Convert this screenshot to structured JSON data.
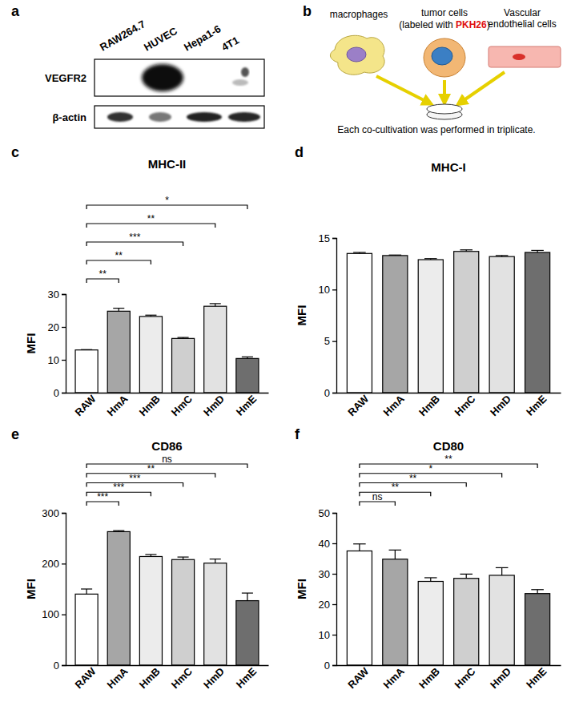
{
  "panel_a": {
    "label": "a",
    "lanes": [
      "RAW264.7",
      "HUVEC",
      "Hepa1-6",
      "4T1"
    ],
    "rows": [
      "VEGFR2",
      "β-actin"
    ]
  },
  "panel_b": {
    "label": "b",
    "items": [
      "macrophages",
      "tumor cells",
      "Vascular endothelial cells"
    ],
    "note": [
      "(labeled with ",
      "PKH26",
      ")"
    ],
    "caption": "Each co-cultivation was performed in triplicate."
  },
  "chart_data": [
    {
      "type": "bar",
      "annotations": [
        "c"
      ],
      "title": "MHC-II",
      "ylabel": "MFI",
      "categories": [
        "RAW",
        "HmA",
        "HmB",
        "HmC",
        "HmD",
        "HmE"
      ],
      "values": [
        13.0,
        24.8,
        23.2,
        16.5,
        26.3,
        10.4
      ],
      "errors": [
        0.1,
        0.9,
        0.4,
        0.3,
        0.8,
        0.5
      ],
      "significance": [
        null,
        "**",
        "**",
        "***",
        "**",
        "*"
      ],
      "colors": [
        "#ffffff",
        "#a6a6a6",
        "#ececec",
        "#cfcfcf",
        "#e2e2e2",
        "#6e6e6e"
      ],
      "ylim": [
        0,
        30
      ],
      "yticks": [
        0,
        10,
        20,
        30
      ]
    },
    {
      "type": "bar",
      "annotations": [
        "d"
      ],
      "title": "MHC-I",
      "ylabel": "MFI",
      "categories": [
        "RAW",
        "HmA",
        "HmB",
        "HmC",
        "HmD",
        "HmE"
      ],
      "values": [
        13.5,
        13.3,
        12.9,
        13.7,
        13.2,
        13.6
      ],
      "errors": [
        0.1,
        0.05,
        0.1,
        0.15,
        0.1,
        0.2
      ],
      "significance": [
        null,
        null,
        null,
        null,
        null,
        null
      ],
      "colors": [
        "#ffffff",
        "#a6a6a6",
        "#ececec",
        "#cfcfcf",
        "#e2e2e2",
        "#6e6e6e"
      ],
      "ylim": [
        0,
        15
      ],
      "yticks": [
        0,
        5,
        10,
        15
      ]
    },
    {
      "type": "bar",
      "annotations": [
        "e"
      ],
      "title": "CD86",
      "ylabel": "MFI",
      "categories": [
        "RAW",
        "HmA",
        "HmB",
        "HmC",
        "HmD",
        "HmE"
      ],
      "values": [
        140,
        263,
        214,
        208,
        201,
        127
      ],
      "errors": [
        10,
        2,
        4,
        5,
        8,
        15
      ],
      "significance": [
        null,
        "***",
        "***",
        "***",
        "**",
        "ns"
      ],
      "colors": [
        "#ffffff",
        "#a6a6a6",
        "#ececec",
        "#cfcfcf",
        "#e2e2e2",
        "#6e6e6e"
      ],
      "ylim": [
        0,
        300
      ],
      "yticks": [
        0,
        100,
        200,
        300
      ]
    },
    {
      "type": "bar",
      "annotations": [
        "f"
      ],
      "title": "CD80",
      "ylabel": "MFI",
      "categories": [
        "RAW",
        "HmA",
        "HmB",
        "HmC",
        "HmD",
        "HmE"
      ],
      "values": [
        37.5,
        34.8,
        27.5,
        28.5,
        29.5,
        23.5
      ],
      "errors": [
        2.3,
        3.0,
        1.2,
        1.4,
        2.5,
        1.3
      ],
      "significance": [
        null,
        "ns",
        "**",
        "**",
        "*",
        "**"
      ],
      "colors": [
        "#ffffff",
        "#a6a6a6",
        "#ececec",
        "#cfcfcf",
        "#e2e2e2",
        "#6e6e6e"
      ],
      "ylim": [
        0,
        50
      ],
      "yticks": [
        0,
        10,
        20,
        30,
        40,
        50
      ]
    }
  ]
}
